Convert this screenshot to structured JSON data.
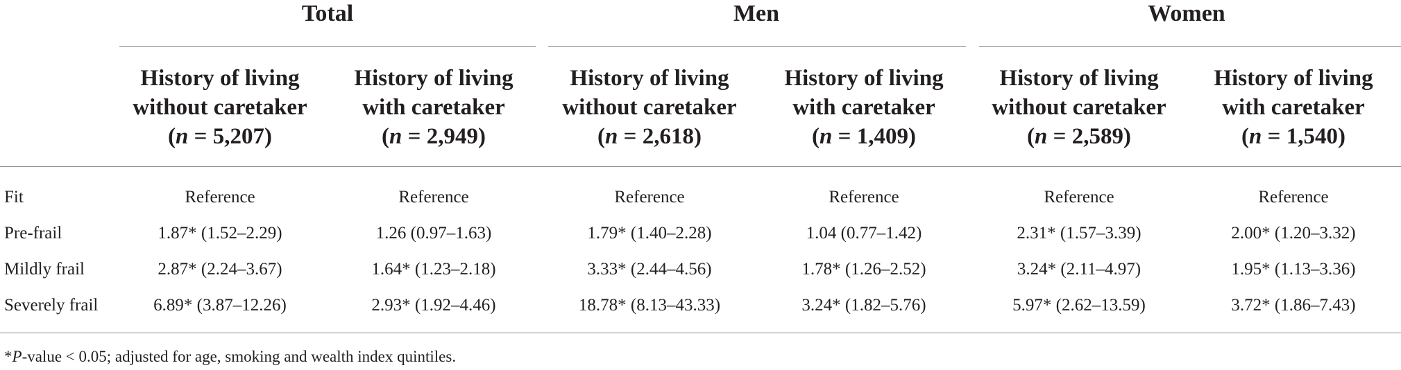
{
  "groups": [
    {
      "label": "Total"
    },
    {
      "label": "Men"
    },
    {
      "label": "Women"
    }
  ],
  "columns": [
    {
      "line1": "History of living",
      "line2": "without caretaker",
      "n_prefix": "n",
      "n_value": " = 5,207"
    },
    {
      "line1": "History of living",
      "line2": "with caretaker",
      "n_prefix": "n",
      "n_value": " = 2,949"
    },
    {
      "line1": "History of living",
      "line2": "without caretaker",
      "n_prefix": "n",
      "n_value": " = 2,618"
    },
    {
      "line1": "History of living",
      "line2": "with caretaker",
      "n_prefix": "n",
      "n_value": " = 1,409"
    },
    {
      "line1": "History of living",
      "line2": "without caretaker",
      "n_prefix": "n",
      "n_value": " = 2,589"
    },
    {
      "line1": "History of living",
      "line2": "with caretaker",
      "n_prefix": "n",
      "n_value": " = 1,540"
    }
  ],
  "rows": [
    {
      "label": "Fit",
      "cells": [
        "Reference",
        "Reference",
        "Reference",
        "Reference",
        "Reference",
        "Reference"
      ]
    },
    {
      "label": "Pre-frail",
      "cells": [
        "1.87* (1.52–2.29)",
        "1.26 (0.97–1.63)",
        "1.79* (1.40–2.28)",
        "1.04 (0.77–1.42)",
        "2.31* (1.57–3.39)",
        "2.00* (1.20–3.32)"
      ]
    },
    {
      "label": "Mildly frail",
      "cells": [
        "2.87* (2.24–3.67)",
        "1.64* (1.23–2.18)",
        "3.33* (2.44–4.56)",
        "1.78* (1.26–2.52)",
        "3.24* (2.11–4.97)",
        "1.95* (1.13–3.36)"
      ]
    },
    {
      "label": "Severely frail",
      "cells": [
        "6.89* (3.87–12.26)",
        "2.93* (1.92–4.46)",
        "18.78* (8.13–43.33)",
        "3.24* (1.82–5.76)",
        "5.97* (2.62–13.59)",
        "3.72* (1.86–7.43)"
      ]
    }
  ],
  "footnote": {
    "star": "*",
    "p_label": "P",
    "text": "-value < 0.05; adjusted for age, smoking and wealth index quintiles."
  }
}
